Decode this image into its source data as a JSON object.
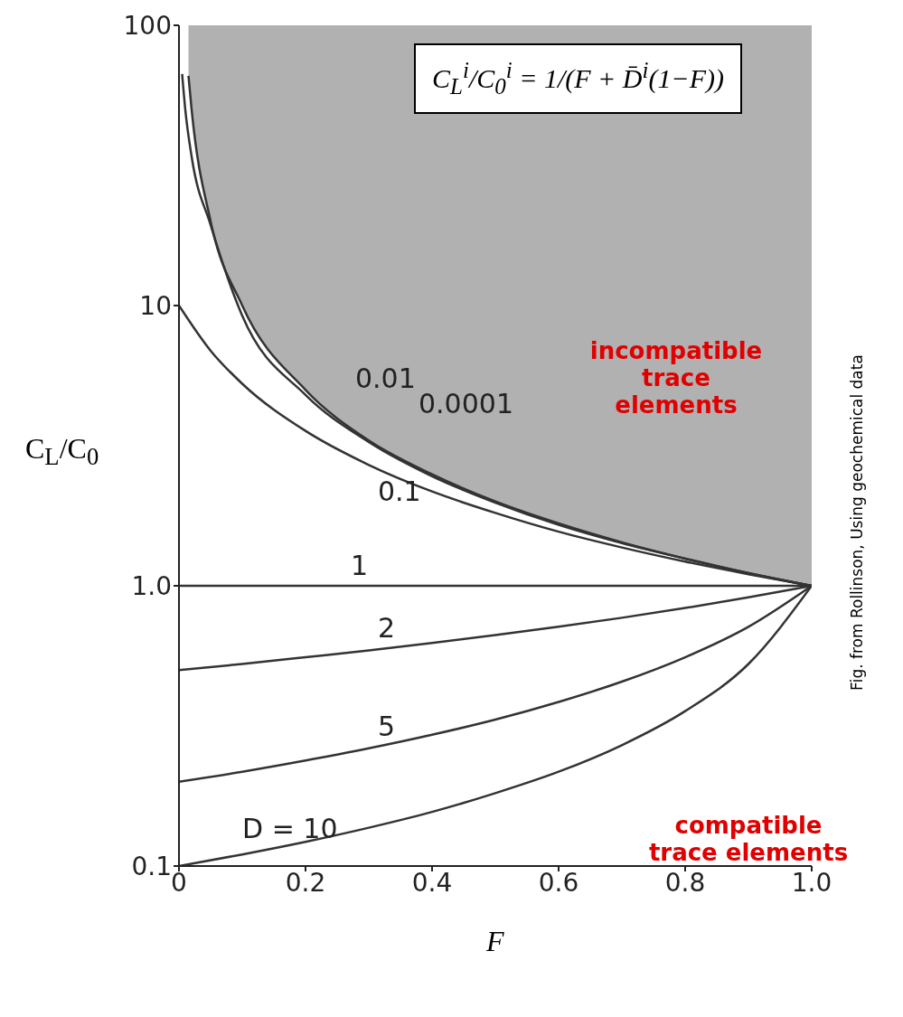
{
  "chart_data": {
    "type": "line",
    "xlabel": "F",
    "ylabel": "C$_{L}$/C$_{0}$",
    "xlim": [
      0,
      1
    ],
    "xticks": [
      0,
      0.2,
      0.4,
      0.6,
      0.8,
      {
        "value": 1,
        "label": "1.0"
      }
    ],
    "ylim": [
      0.1,
      100
    ],
    "yticks": [
      0.1,
      {
        "value": 1,
        "label": "1.0"
      },
      10,
      100
    ],
    "log": "y",
    "marker": "none",
    "line_style": "solid",
    "series": [
      {
        "name": "0.0001",
        "color": "#333333",
        "x": [
          0.015,
          0.02,
          0.05,
          0.1,
          0.2,
          0.3,
          0.4,
          0.5,
          0.6,
          0.7,
          0.8,
          0.9,
          1
        ],
        "values": [
          66,
          50,
          20,
          10,
          5,
          3.3,
          2.5,
          2,
          1.67,
          1.43,
          1.25,
          1.11,
          1
        ],
        "lower": [
          66,
          50,
          20,
          10,
          5,
          3.3,
          2.5,
          2,
          1.67,
          1.43,
          1.25,
          1.11,
          1
        ],
        "upper": [
          100,
          100,
          100,
          100,
          100,
          100,
          100,
          100,
          100,
          100,
          100,
          100,
          100
        ]
      },
      {
        "name": "0.01",
        "color": "#333333",
        "x": [
          0.005,
          0.01,
          0.02,
          0.05,
          0.1,
          0.2,
          0.3,
          0.4,
          0.5,
          0.6,
          0.7,
          0.8,
          0.9,
          1
        ],
        "values": [
          67,
          50,
          34,
          19.4,
          9.2,
          4.8,
          3.26,
          2.46,
          1.98,
          1.65,
          1.42,
          1.25,
          1.11,
          1
        ]
      },
      {
        "name": "0.1",
        "color": "#333333",
        "x": [
          0,
          0.05,
          0.1,
          0.2,
          0.3,
          0.4,
          0.5,
          0.6,
          0.7,
          0.8,
          0.9,
          1
        ],
        "values": [
          10,
          6.9,
          5.26,
          3.57,
          2.7,
          2.17,
          1.82,
          1.56,
          1.37,
          1.22,
          1.1,
          1
        ]
      },
      {
        "name": "1",
        "color": "#333333",
        "x": [
          0,
          0.5,
          1
        ],
        "values": [
          1,
          1,
          1
        ]
      },
      {
        "name": "2",
        "color": "#333333",
        "x": [
          0,
          0.1,
          0.2,
          0.3,
          0.4,
          0.5,
          0.6,
          0.7,
          0.8,
          0.9,
          1
        ],
        "values": [
          0.5,
          0.526,
          0.556,
          0.588,
          0.625,
          0.667,
          0.714,
          0.769,
          0.833,
          0.909,
          1
        ]
      },
      {
        "name": "5",
        "color": "#333333",
        "x": [
          0,
          0.1,
          0.2,
          0.3,
          0.4,
          0.5,
          0.6,
          0.7,
          0.8,
          0.9,
          1
        ],
        "values": [
          0.2,
          0.217,
          0.238,
          0.263,
          0.294,
          0.333,
          0.385,
          0.455,
          0.556,
          0.714,
          1
        ]
      },
      {
        "name": "D = 10",
        "color": "#333333",
        "x": [
          0,
          0.1,
          0.2,
          0.3,
          0.4,
          0.5,
          0.6,
          0.7,
          0.8,
          0.9,
          1
        ],
        "values": [
          0.1,
          0.11,
          0.122,
          0.137,
          0.156,
          0.182,
          0.217,
          0.27,
          0.357,
          0.526,
          1
        ]
      }
    ],
    "annotations": [
      "C$_{L}$$^{i}$/C$_{0}$$^{i}$ = 1/(F + D̄$^{i}$(1−F))",
      "incompatible trace elements",
      "compatible trace elements",
      "Fig. from Rollinson, Using geochemical data"
    ]
  }
}
